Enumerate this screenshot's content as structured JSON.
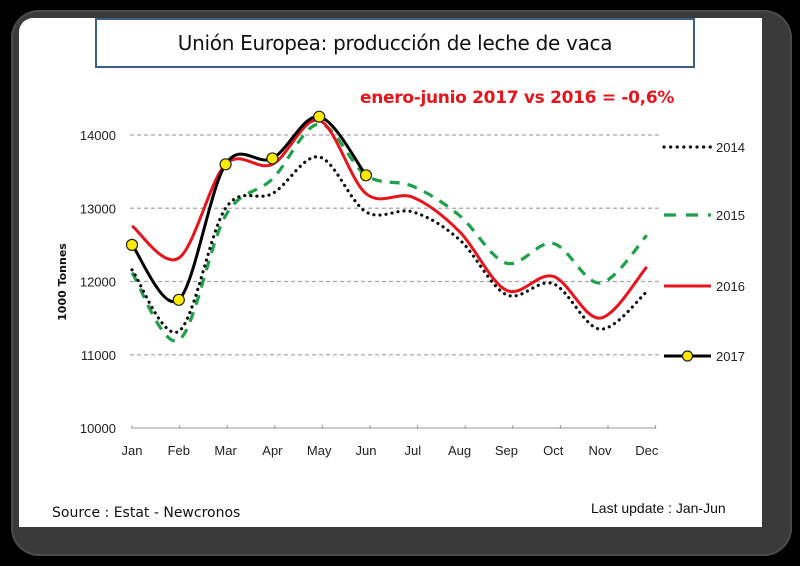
{
  "title": "Unión Europea: producción de leche de vaca",
  "annotation": "enero-junio 2017 vs 2016 = -0,6%",
  "source": "Source : Estat - Newcronos",
  "last_update": "Last update : Jan-Jun",
  "chart_data": {
    "type": "line",
    "title": "Unión Europea: producción de leche de vaca",
    "xlabel": "",
    "ylabel": "1000 Tonnes",
    "ylim": [
      10000,
      14000
    ],
    "yticks": [
      "10000",
      "11000",
      "12000",
      "13000",
      "14000"
    ],
    "ytick_values": [
      10000,
      11000,
      12000,
      13000,
      14000
    ],
    "grid": "horizontal dashed",
    "legend_position": "right",
    "categories": [
      "Jan",
      "Feb",
      "Mar",
      "Apr",
      "May",
      "Jun",
      "Jul",
      "Aug",
      "Sep",
      "Oct",
      "Nov",
      "Dec"
    ],
    "series": [
      {
        "name": "2014",
        "style": "dotted",
        "color": "#111111",
        "values": [
          12160,
          11320,
          13000,
          13200,
          13700,
          12950,
          12950,
          12570,
          11820,
          11970,
          11350,
          11860
        ]
      },
      {
        "name": "2015",
        "style": "dashed",
        "color": "#1fa04a",
        "values": [
          12120,
          11200,
          12900,
          13400,
          14150,
          13450,
          13300,
          12900,
          12250,
          12520,
          11980,
          12630
        ]
      },
      {
        "name": "2016",
        "style": "solid",
        "color": "#e8141c",
        "values": [
          12760,
          12320,
          13600,
          13600,
          14200,
          13200,
          13150,
          12680,
          11880,
          12070,
          11500,
          12200
        ]
      },
      {
        "name": "2017",
        "style": "solid-markers",
        "color": "#000000",
        "marker_color": "#ffeb00",
        "values": [
          12500,
          11750,
          13600,
          13680,
          14250,
          13450,
          null,
          null,
          null,
          null,
          null,
          null
        ]
      }
    ]
  }
}
